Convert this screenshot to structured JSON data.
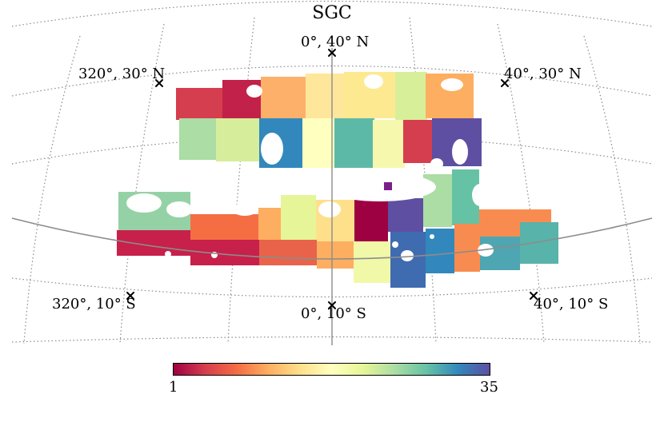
{
  "title": "SGC",
  "markers": [
    {
      "label": "0°, 40° N"
    },
    {
      "label": "320°, 30° N"
    },
    {
      "label": "40°, 30° N"
    },
    {
      "label": "320°, 10° S"
    },
    {
      "label": "0°, 10° S"
    },
    {
      "label": "40°, 10° S"
    }
  ],
  "colorbar": {
    "min_label": "1",
    "max_label": "35",
    "colormap": "Spectral",
    "colors": [
      "#9e0142",
      "#d53e4f",
      "#f46d43",
      "#fdae61",
      "#fee08b",
      "#ffffbf",
      "#e6f598",
      "#abdda4",
      "#66c2a5",
      "#3288bd",
      "#5e4fa2"
    ]
  },
  "colors": {
    "grid": "#8a8a8a",
    "galactic_plane": "#8c8c8c",
    "marker": "#000000"
  }
}
